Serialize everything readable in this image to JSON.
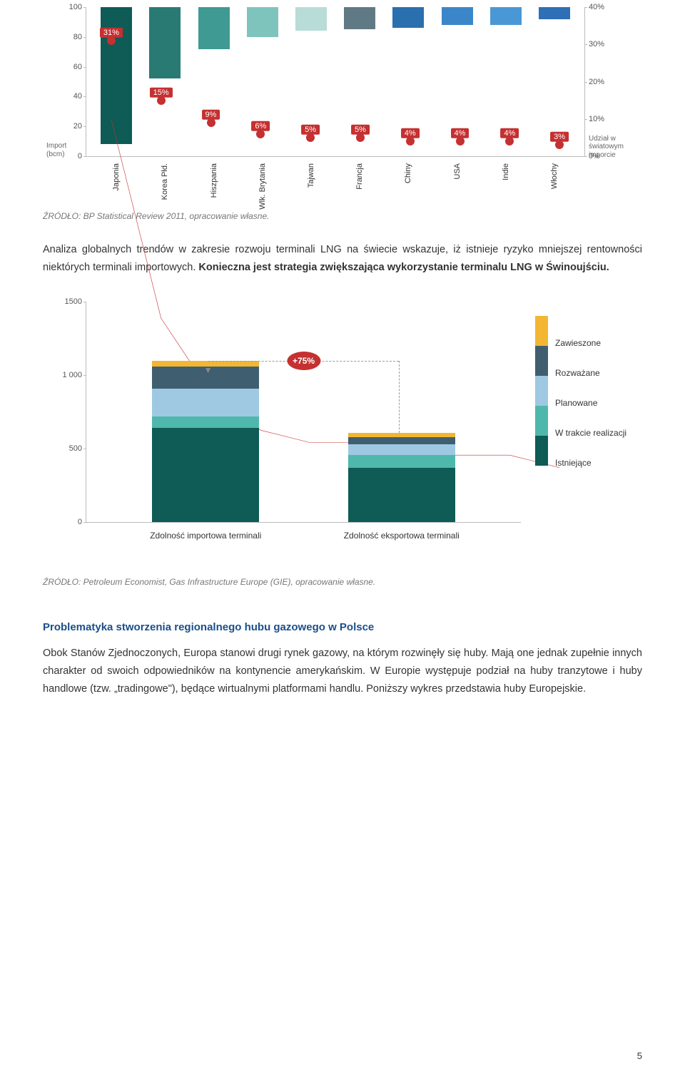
{
  "chart1": {
    "type": "bar+line",
    "left_axis": {
      "label": "Import\n(bcm)",
      "min": 0,
      "max": 100,
      "ticks": [
        0,
        20,
        40,
        60,
        80,
        100
      ]
    },
    "right_axis": {
      "label": "Udział w światowym imporcie",
      "min": 0,
      "max": 40,
      "ticks": [
        0,
        10,
        20,
        30,
        40
      ],
      "suffix": "%"
    },
    "categories": [
      "Japonia",
      "Korea Płd.",
      "Hiszpania",
      "Wlk. Brytania",
      "Tajwan",
      "Francja",
      "Chiny",
      "USA",
      "Indie",
      "Włochy"
    ],
    "bar_values": [
      92,
      48,
      28,
      20,
      16,
      15,
      14,
      12,
      12,
      8
    ],
    "bar_colors": [
      "#0f5b56",
      "#2a7a74",
      "#3f9a93",
      "#7fc3bd",
      "#b8dcd8",
      "#5f7a85",
      "#2a6fae",
      "#3b86c8",
      "#4a97d6",
      "#2e6fb5"
    ],
    "line_values": [
      31,
      15,
      9,
      6,
      5,
      5,
      4,
      4,
      4,
      3
    ],
    "line_color": "#c53030",
    "marker_color": "#c53030",
    "label_bg": "#c53030",
    "grid_color": "#bbbbbb"
  },
  "source1": "ŹRÓDŁO: BP Statistical Review 2011, opracowanie własne.",
  "para1_a": "Analiza globalnych trendów w zakresie rozwoju terminali LNG na świecie wskazuje, iż istnieje ryzyko mniejszej rentowności niektórych terminali importowych. ",
  "para1_b": "Konieczna jest strategia zwiększająca wykorzystanie terminalu LNG w Świnoujściu.",
  "chart2": {
    "type": "stacked-bar",
    "y": {
      "min": 0,
      "max": 1500,
      "ticks": [
        0,
        500,
        1000,
        1500
      ],
      "tick_labels": [
        "0",
        "500",
        "1 000",
        "1500"
      ]
    },
    "categories": [
      "Zdolność importowa terminali",
      "Zdolność eksportowa terminali"
    ],
    "legend": [
      {
        "label": "Zawieszone",
        "color": "#f2b632"
      },
      {
        "label": "Rozważane",
        "color": "#3f5f70"
      },
      {
        "label": "Planowane",
        "color": "#9fc8e2"
      },
      {
        "label": "W trakcie realizacji",
        "color": "#4fb8ac"
      },
      {
        "label": "Istniejące",
        "color": "#0f5b56"
      }
    ],
    "stacks": [
      {
        "Istniejące": 640,
        "W trakcie realizacji": 80,
        "Planowane": 190,
        "Rozważane": 150,
        "Zawieszone": 40
      },
      {
        "Istniejące": 370,
        "W trakcie realizacji": 90,
        "Planowane": 70,
        "Rozważane": 50,
        "Zawieszone": 30
      }
    ],
    "badge": "+75%",
    "badge_color": "#c53030",
    "dash_color": "#8aa0a8"
  },
  "source2": "ŹRÓDŁO: Petroleum Economist, Gas Infrastructure Europe (GIE), opracowanie własne.",
  "heading": "Problematyka stworzenia regionalnego hubu gazowego w Polsce",
  "para2": "Obok Stanów Zjednoczonych, Europa stanowi drugi rynek gazowy, na którym rozwinęły się huby. Mają one jednak zupełnie innych charakter od swoich odpowiedników na kontynencie amerykańskim. W Europie występuje podział na huby tranzytowe i huby handlowe (tzw. „tradingowe\"), będące wirtualnymi platformami handlu. Poniższy wykres przedstawia huby Europejskie.",
  "page_number": "5"
}
